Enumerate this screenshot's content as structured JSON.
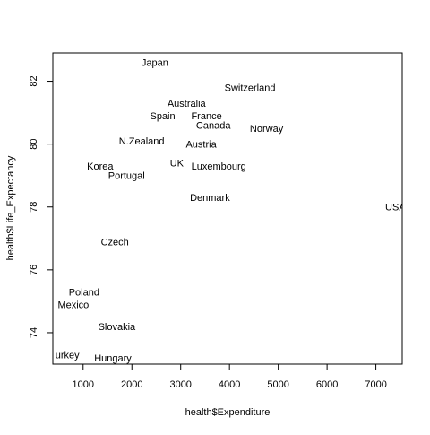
{
  "chart_data": {
    "type": "scatter",
    "point_style": "text-labels",
    "xlabel": "health$Expenditure",
    "ylabel": "health$Life_Expectancy",
    "xlim": [
      380,
      7540
    ],
    "ylim": [
      73.0,
      82.9
    ],
    "x_ticks": [
      1000,
      2000,
      3000,
      4000,
      5000,
      6000,
      7000
    ],
    "x_tick_labels": [
      "1000",
      "2000",
      "3000",
      "4000",
      "5000",
      "6000",
      "7000"
    ],
    "y_ticks": [
      74,
      76,
      78,
      80,
      82
    ],
    "y_tick_labels": [
      "74",
      "76",
      "78",
      "80",
      "82"
    ],
    "grid": false,
    "legend": "none",
    "points": [
      {
        "label": "Japan",
        "x": 2470,
        "y": 82.6
      },
      {
        "label": "Switzerland",
        "x": 4420,
        "y": 81.8
      },
      {
        "label": "Australia",
        "x": 3120,
        "y": 81.3
      },
      {
        "label": "Spain",
        "x": 2630,
        "y": 80.9
      },
      {
        "label": "France",
        "x": 3530,
        "y": 80.9
      },
      {
        "label": "Canada",
        "x": 3670,
        "y": 80.6
      },
      {
        "label": "Norway",
        "x": 4760,
        "y": 80.5
      },
      {
        "label": "N.Zealand",
        "x": 2200,
        "y": 80.1
      },
      {
        "label": "Austria",
        "x": 3420,
        "y": 80.0
      },
      {
        "label": "UK",
        "x": 2920,
        "y": 79.4
      },
      {
        "label": "Luxembourg",
        "x": 3780,
        "y": 79.3
      },
      {
        "label": "Korea",
        "x": 1350,
        "y": 79.3
      },
      {
        "label": "Portugal",
        "x": 1890,
        "y": 79.0
      },
      {
        "label": "Denmark",
        "x": 3600,
        "y": 78.3
      },
      {
        "label": "USA",
        "x": 7400,
        "y": 78.0
      },
      {
        "label": "Czech",
        "x": 1650,
        "y": 76.9
      },
      {
        "label": "Poland",
        "x": 1020,
        "y": 75.3
      },
      {
        "label": "Mexico",
        "x": 800,
        "y": 74.9
      },
      {
        "label": "Slovakia",
        "x": 1690,
        "y": 74.2
      },
      {
        "label": "Turkey",
        "x": 620,
        "y": 73.3
      },
      {
        "label": "Hungary",
        "x": 1610,
        "y": 73.2
      }
    ]
  },
  "colors": {
    "axis": "#000000",
    "text": "#000000",
    "background": "#ffffff"
  }
}
